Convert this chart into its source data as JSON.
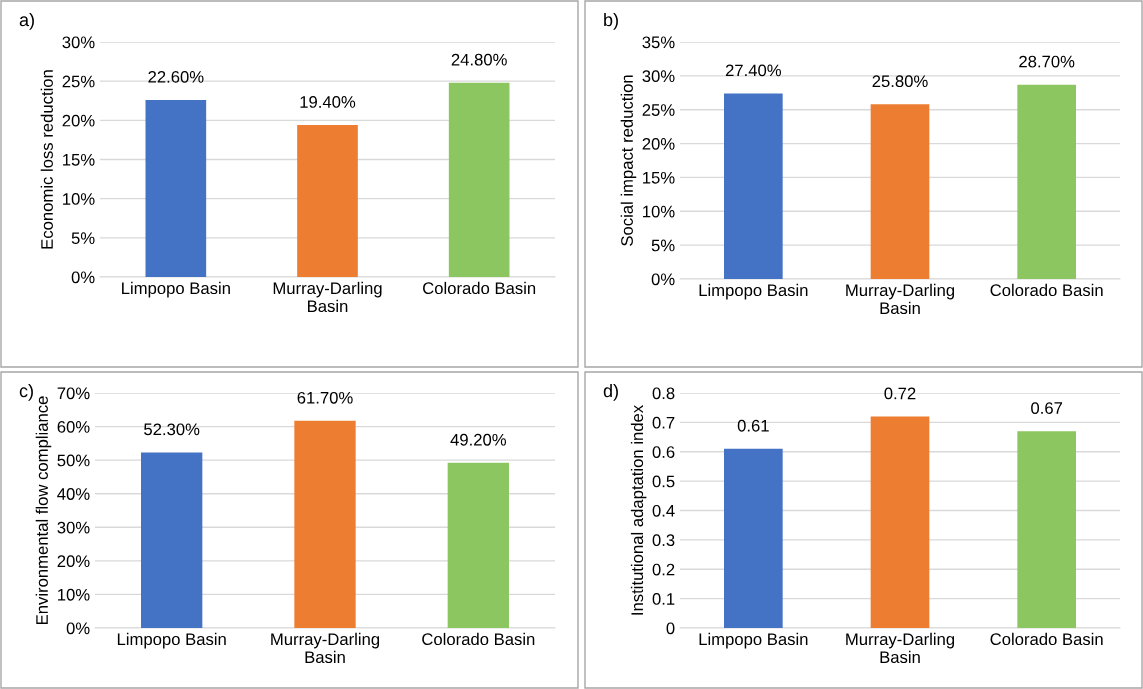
{
  "chart_data": [
    {
      "type": "bar",
      "title": "a)",
      "ylabel": "Economic loss reduction",
      "categories": [
        "Limpopo Basin",
        "Murray-Darling\nBasin",
        "Colorado Basin"
      ],
      "values": [
        22.6,
        19.4,
        24.8
      ],
      "value_labels": [
        "22.60%",
        "19.40%",
        "24.80%"
      ],
      "colors": [
        "#4472c4",
        "#ed7d31",
        "#8cc660"
      ],
      "ylim": [
        0,
        30
      ],
      "yticks": [
        {
          "value": 0,
          "label": "0%"
        },
        {
          "value": 5,
          "label": "5%"
        },
        {
          "value": 10,
          "label": "10%"
        },
        {
          "value": 15,
          "label": "15%"
        },
        {
          "value": 20,
          "label": "20%"
        },
        {
          "value": 25,
          "label": "25%"
        },
        {
          "value": 30,
          "label": "30%"
        }
      ],
      "grid": "y"
    },
    {
      "type": "bar",
      "title": "b)",
      "ylabel": "Social impact reduction",
      "categories": [
        "Limpopo Basin",
        "Murray-Darling\nBasin",
        "Colorado Basin"
      ],
      "values": [
        27.4,
        25.8,
        28.7
      ],
      "value_labels": [
        "27.40%",
        "25.80%",
        "28.70%"
      ],
      "colors": [
        "#4472c4",
        "#ed7d31",
        "#8cc660"
      ],
      "ylim": [
        0,
        35
      ],
      "yticks": [
        {
          "value": 0,
          "label": "0%"
        },
        {
          "value": 5,
          "label": "5%"
        },
        {
          "value": 10,
          "label": "10%"
        },
        {
          "value": 15,
          "label": "15%"
        },
        {
          "value": 20,
          "label": "20%"
        },
        {
          "value": 25,
          "label": "25%"
        },
        {
          "value": 30,
          "label": "30%"
        },
        {
          "value": 35,
          "label": "35%"
        }
      ],
      "grid": "y"
    },
    {
      "type": "bar",
      "title": "c)",
      "ylabel": "Environmental flow compliance",
      "categories": [
        "Limpopo Basin",
        "Murray-Darling\nBasin",
        "Colorado Basin"
      ],
      "values": [
        52.3,
        61.7,
        49.2
      ],
      "value_labels": [
        "52.30%",
        "61.70%",
        "49.20%"
      ],
      "colors": [
        "#4472c4",
        "#ed7d31",
        "#8cc660"
      ],
      "ylim": [
        0,
        70
      ],
      "yticks": [
        {
          "value": 0,
          "label": "0%"
        },
        {
          "value": 10,
          "label": "10%"
        },
        {
          "value": 20,
          "label": "20%"
        },
        {
          "value": 30,
          "label": "30%"
        },
        {
          "value": 40,
          "label": "40%"
        },
        {
          "value": 50,
          "label": "50%"
        },
        {
          "value": 60,
          "label": "60%"
        },
        {
          "value": 70,
          "label": "70%"
        }
      ],
      "grid": "y"
    },
    {
      "type": "bar",
      "title": "d)",
      "ylabel": "Institutional adaptation index",
      "categories": [
        "Limpopo Basin",
        "Murray-Darling\nBasin",
        "Colorado Basin"
      ],
      "values": [
        0.61,
        0.72,
        0.67
      ],
      "value_labels": [
        "0.61",
        "0.72",
        "0.67"
      ],
      "colors": [
        "#4472c4",
        "#ed7d31",
        "#8cc660"
      ],
      "ylim": [
        0,
        0.8
      ],
      "yticks": [
        0,
        0.1,
        0.2,
        0.3,
        0.4,
        0.5,
        0.6,
        0.7,
        0.8
      ],
      "grid": "y"
    }
  ]
}
